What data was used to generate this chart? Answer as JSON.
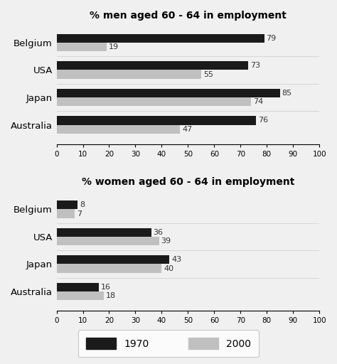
{
  "men_title": "% men aged 60 - 64 in employment",
  "women_title": "% women aged 60 - 64 in employment",
  "countries": [
    "Australia",
    "Japan",
    "USA",
    "Belgium"
  ],
  "men_1970": [
    76,
    85,
    73,
    79
  ],
  "men_2000": [
    47,
    74,
    55,
    19
  ],
  "women_1970": [
    16,
    43,
    36,
    8
  ],
  "women_2000": [
    18,
    40,
    39,
    7
  ],
  "color_1970": "#1a1a1a",
  "color_2000": "#c0c0c0",
  "xlim": [
    0,
    100
  ],
  "xticks": [
    0,
    10,
    20,
    30,
    40,
    50,
    60,
    70,
    80,
    90,
    100
  ],
  "bar_height": 0.32,
  "legend_1970": "1970",
  "legend_2000": "2000",
  "label_fontsize": 8,
  "title_fontsize": 10,
  "tick_fontsize": 7.5,
  "bg_color": "#f0f0f0"
}
